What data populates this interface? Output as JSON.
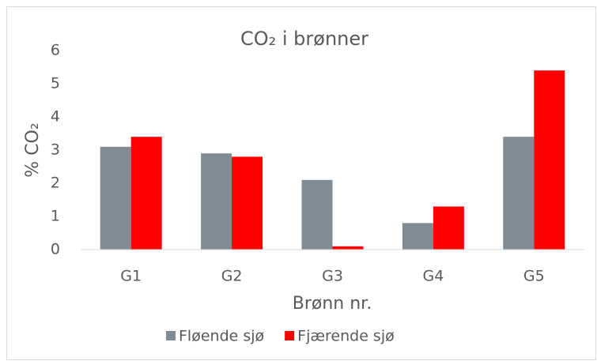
{
  "chart_data": {
    "type": "bar",
    "title": "CO₂ i brønner",
    "x_label": "Brønn nr.",
    "y_label": "% CO₂",
    "categories": [
      "G1",
      "G2",
      "G3",
      "G4",
      "G5"
    ],
    "series": [
      {
        "name": "Fløende sjø",
        "color": "#7f8c96",
        "values": [
          3.1,
          2.9,
          2.1,
          0.8,
          3.4
        ]
      },
      {
        "name": "Fjærende sjø",
        "color": "#ff0000",
        "values": [
          3.4,
          2.8,
          0.1,
          1.3,
          5.4
        ]
      }
    ],
    "ylim": [
      0,
      6
    ],
    "yticks": [
      0,
      1,
      2,
      3,
      4,
      5,
      6
    ],
    "grid": false,
    "legend": "bottom"
  }
}
